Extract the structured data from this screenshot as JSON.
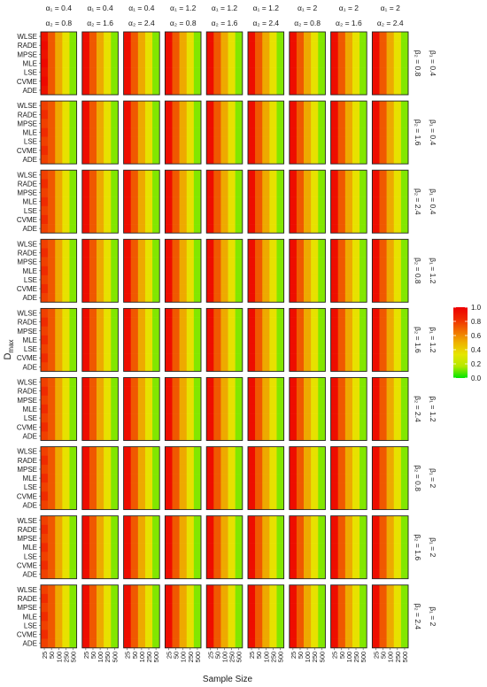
{
  "chart_data": {
    "type": "heatmap",
    "ylabel": "D",
    "ylabel_subscript": "max",
    "xlabel": "Sample Size",
    "methods": [
      "WLSE",
      "RADE",
      "MPSE",
      "MLE",
      "LSE",
      "CVME",
      "ADE"
    ],
    "sample_sizes": [
      "25",
      "50",
      "100",
      "250",
      "500"
    ],
    "column_facets": [
      {
        "a1": "α₁ = 0.4",
        "a2": "α₂ = 0.8"
      },
      {
        "a1": "α₁ = 0.4",
        "a2": "α₂ = 1.6"
      },
      {
        "a1": "α₁ = 0.4",
        "a2": "α₂ = 2.4"
      },
      {
        "a1": "α₁ = 1.2",
        "a2": "α₂ = 0.8"
      },
      {
        "a1": "α₁ = 1.2",
        "a2": "α₂ = 1.6"
      },
      {
        "a1": "α₁ = 1.2",
        "a2": "α₂ = 2.4"
      },
      {
        "a1": "α₁ = 2",
        "a2": "α₂ = 0.8"
      },
      {
        "a1": "α₁ = 2",
        "a2": "α₂ = 1.6"
      },
      {
        "a1": "α₁ = 2",
        "a2": "α₂ = 2.4"
      }
    ],
    "row_facets": [
      {
        "b1": "β₁ = 0.4",
        "b2": "β₂ = 0.8"
      },
      {
        "b1": "β₁ = 0.4",
        "b2": "β₂ = 1.6"
      },
      {
        "b1": "β₁ = 0.4",
        "b2": "β₂ = 2.4"
      },
      {
        "b1": "β₁ = 1.2",
        "b2": "β₂ = 0.8"
      },
      {
        "b1": "β₁ = 1.2",
        "b2": "β₂ = 1.6"
      },
      {
        "b1": "β₁ = 1.2",
        "b2": "β₂ = 2.4"
      },
      {
        "b1": "β₁ = 2",
        "b2": "β₂ = 0.8"
      },
      {
        "b1": "β₁ = 2",
        "b2": "β₂ = 1.6"
      },
      {
        "b1": "β₁ = 2",
        "b2": "β₂ = 2.4"
      }
    ],
    "values_by_sample_size": [
      0.95,
      0.72,
      0.52,
      0.35,
      0.12
    ],
    "value_note_first_col_variants": [
      [
        0.78,
        0.83
      ],
      [
        0.93,
        0.97
      ]
    ],
    "legend": {
      "position": "right",
      "ticks": [
        "1.0",
        "0.8",
        "0.6",
        "0.4",
        "0.2",
        "0.0"
      ],
      "range": [
        0,
        1
      ],
      "colors": [
        "#00e600",
        "#b5e800",
        "#e6e600",
        "#eeb100",
        "#f16e00",
        "#ef2a00",
        "#ee0000"
      ]
    }
  }
}
